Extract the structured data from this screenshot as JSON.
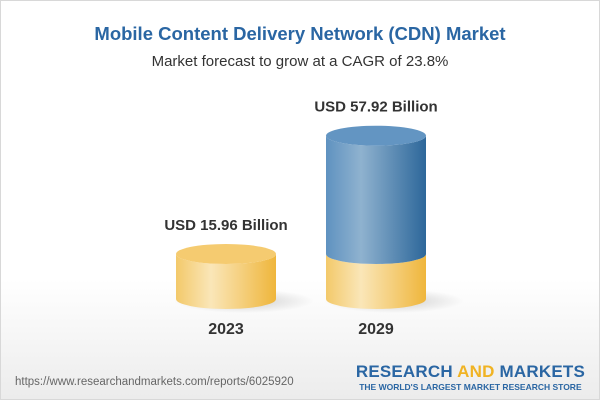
{
  "header": {
    "title": "Mobile Content Delivery Network (CDN) Market",
    "subtitle": "Market forecast to grow at a CAGR of 23.8%"
  },
  "chart_data": {
    "type": "bar",
    "style": "3d-cylinder",
    "categories": [
      "2023",
      "2029"
    ],
    "values": [
      15.96,
      57.92
    ],
    "data_labels": [
      "USD 15.96 Billion",
      "USD 57.92 Billion"
    ],
    "unit": "USD Billion",
    "colors": {
      "base": "#f2c55c",
      "growth": "#4f86b8"
    },
    "grid": false
  },
  "footer": {
    "url": "https://www.researchandmarkets.com/reports/6025920",
    "logo_word1": "RESEARCH",
    "logo_word2": "AND",
    "logo_word3": "MARKETS",
    "logo_tagline": "THE WORLD'S LARGEST MARKET RESEARCH STORE"
  }
}
